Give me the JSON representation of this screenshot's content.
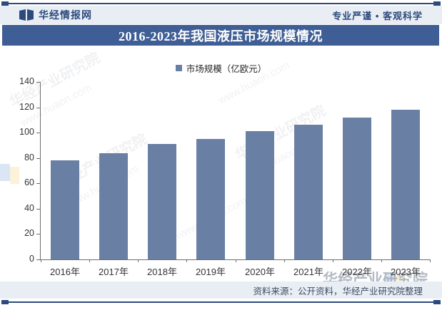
{
  "header": {
    "brand": "华经情报网",
    "slogan": "专业严谨 • 客观科学",
    "logo_icon": "huajing-book-logo",
    "text_color": "#2c4a7c",
    "band_color": "#e9eef5"
  },
  "title_banner": {
    "text": "2016-2023年我国液压市场规模情况",
    "bg_color": "#3f5e95",
    "text_color": "#ffffff"
  },
  "legend": {
    "marker_color": "#6a7fa4",
    "label": "市场规模（亿欧元）"
  },
  "chart_data": {
    "type": "bar",
    "title": "2016-2023年我国液压市场规模情况",
    "series_name": "市场规模（亿欧元）",
    "categories": [
      "2016年",
      "2017年",
      "2018年",
      "2019年",
      "2020年",
      "2021年",
      "2022年",
      "2023年"
    ],
    "values": [
      78,
      84,
      91,
      95,
      101,
      106,
      112,
      118
    ],
    "xlabel": "",
    "ylabel": "",
    "ylim": [
      0,
      140
    ],
    "yticks": [
      0,
      20,
      40,
      60,
      80,
      100,
      120,
      140
    ],
    "bar_color": "#6a7fa4",
    "grid": false,
    "legend_position": "top-center"
  },
  "footer": {
    "source_text": "资料来源：公开资料，华经产业研究院整理",
    "band_color": "#e9eef5"
  },
  "watermarks": {
    "diagonal_text": "华经产业研究院",
    "url_text": "www.huaon.com",
    "corner_text": "华经产业研究院"
  }
}
